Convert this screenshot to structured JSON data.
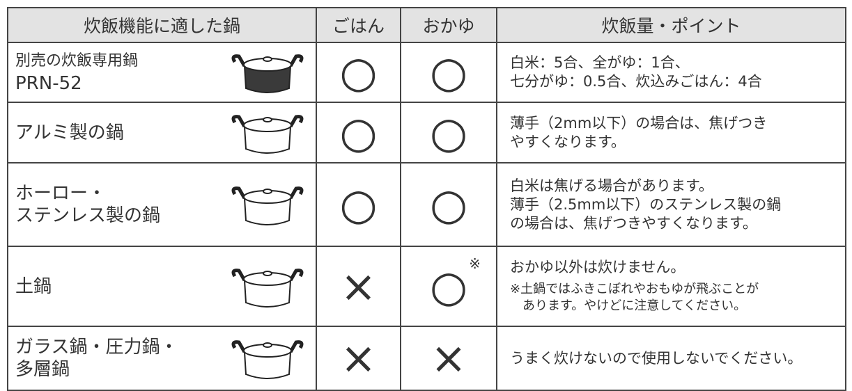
{
  "table": {
    "headers": [
      "炊飯機能に適した鍋",
      "ごはん",
      "おかゆ",
      "炊飯量・ポイント"
    ],
    "rows": [
      {
        "name": [
          "別売の炊飯専用鍋",
          "PRN-52"
        ],
        "rice": "○",
        "porridge": "○",
        "points": [
          "白米：5合、全がゆ：1合、",
          "七分がゆ：0.5合、炊込みごはん：4合"
        ]
      },
      {
        "name": [
          "アルミ製の鍋"
        ],
        "rice": "○",
        "porridge": "○",
        "points": [
          "薄手（2mm以下）の場合は、焦げつき",
          "やすくなります。"
        ]
      },
      {
        "name": [
          "ホーロー・",
          "ステンレス製の鍋"
        ],
        "rice": "○",
        "porridge": "○",
        "points": [
          "白米は焦げる場合があります。",
          "薄手（2.5mm以下）のステンレス製の鍋",
          "の場合は、焦げつきやすくなります。"
        ]
      },
      {
        "name": [
          "土鍋"
        ],
        "rice": "×",
        "porridge": "○",
        "porridge_mark": "※",
        "points": [
          "おかゆ以外は炊けません。"
        ],
        "points_note": [
          "※土鍋ではふきこぼれやおもゆが飛ぶことが",
          "あります。やけどに注意してください。"
        ]
      },
      {
        "name": [
          "ガラス鍋・圧力鍋・",
          "多層鍋"
        ],
        "rice": "×",
        "porridge": "×",
        "points": [
          "うまく炊けないので使用しないでください。"
        ]
      }
    ]
  }
}
